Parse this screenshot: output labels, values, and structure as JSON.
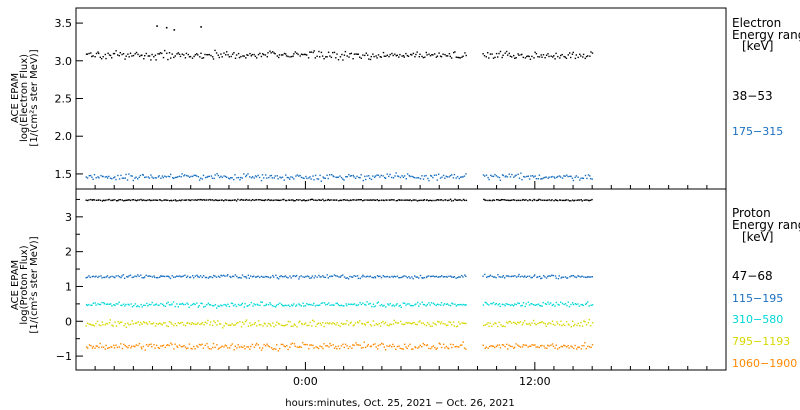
{
  "xlabel": "hours:minutes, Oct. 25, 2021 − Oct. 26, 2021",
  "x_ticks": [
    "0:00",
    "12:00"
  ],
  "chart_data": [
    {
      "type": "scatter",
      "instrument": "ACE EPAM",
      "ylabel_lines": [
        "ACE EPAM",
        "log(Electron Flux)",
        "[1/(cm²s ster MeV)]"
      ],
      "legend_title_lines": [
        "Electron",
        "Energy range",
        "[keV]"
      ],
      "xlim_hours": [
        -12,
        22
      ],
      "ylim": [
        1.3,
        3.7
      ],
      "y_ticks": [
        1.5,
        2.0,
        2.5,
        3.0,
        3.5
      ],
      "y_tick_labels": [
        "1.5",
        "2.0",
        "2.5",
        "3.0",
        "3.5"
      ],
      "data_gap_hours": [
        8.4,
        9.2
      ],
      "series": [
        {
          "name": "38−53",
          "color": "#000000",
          "time_range_hours": [
            -11.5,
            15
          ],
          "mean": 3.08,
          "spread": 0.05,
          "outliers": [
            {
              "x": -7.8,
              "y": 3.47
            },
            {
              "x": -7.3,
              "y": 3.45
            },
            {
              "x": -6.9,
              "y": 3.42
            },
            {
              "x": -5.5,
              "y": 3.46
            }
          ]
        },
        {
          "name": "175−315",
          "color": "#1a6fc0",
          "time_range_hours": [
            -11.5,
            15
          ],
          "mean": 1.47,
          "spread": 0.04
        }
      ]
    },
    {
      "type": "scatter",
      "instrument": "ACE EPAM",
      "ylabel_lines": [
        "ACE EPAM",
        "log(Proton Flux)",
        "[1/(cm²s ster MeV)]"
      ],
      "legend_title_lines": [
        "Proton",
        "Energy range",
        "[keV]"
      ],
      "xlim_hours": [
        -12,
        22
      ],
      "ylim": [
        -1.4,
        3.8
      ],
      "y_ticks": [
        -1,
        0,
        1,
        2,
        3
      ],
      "y_tick_labels": [
        "−1",
        "0",
        "1",
        "2",
        "3"
      ],
      "data_gap_hours": [
        8.4,
        9.2
      ],
      "series": [
        {
          "name": "47−68",
          "color": "#000000",
          "time_range_hours": [
            -11.5,
            15
          ],
          "mean": 3.5,
          "spread": 0.02
        },
        {
          "name": "115−195",
          "color": "#1a6fc0",
          "time_range_hours": [
            -11.5,
            15
          ],
          "mean": 1.3,
          "spread": 0.05
        },
        {
          "name": "310−580",
          "color": "#00d8d8",
          "time_range_hours": [
            -11.5,
            15
          ],
          "mean": 0.5,
          "spread": 0.07
        },
        {
          "name": "795−1193",
          "color": "#d8d800",
          "time_range_hours": [
            -11.5,
            15
          ],
          "mean": -0.05,
          "spread": 0.09
        },
        {
          "name": "1060−1900",
          "color": "#ff8800",
          "time_range_hours": [
            -11.5,
            15
          ],
          "mean": -0.7,
          "spread": 0.1
        }
      ]
    }
  ]
}
